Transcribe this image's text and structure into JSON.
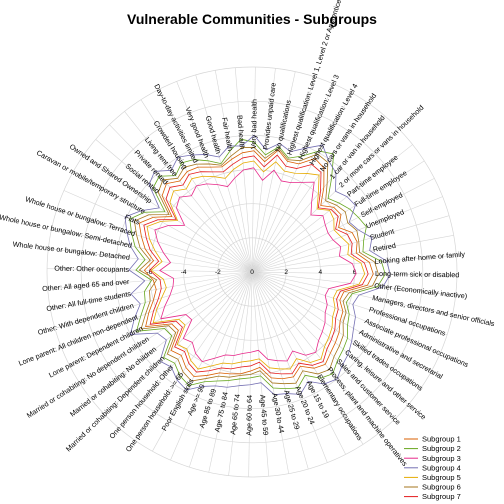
{
  "chart_data": {
    "type": "radar",
    "title": "Vulnerable Communities - Subgroups",
    "radial_range": [
      -6,
      6
    ],
    "radial_ticks": [
      -6,
      -4,
      -2,
      0,
      2,
      4,
      6
    ],
    "radial_tick_labels": [
      "-6",
      "-4",
      "-2",
      "0",
      "2",
      "4",
      "6"
    ],
    "spokes": [
      "Retired",
      "Student",
      "Unemployed",
      "Self-employed",
      "Full-time employee",
      "Part-time employee",
      "2 or more cars or vans in household",
      "1 car or van in household",
      "No cars or vans in household",
      "Highest qualification: Level 4",
      "Highest qualification: Level 3",
      "Highest qualification: Level 1, Level 2 or Apprenticeship",
      "No qualifications",
      "Provides unpaid care",
      "Very bad health",
      "Bad health",
      "Fair health",
      "Good health",
      "Very good health",
      "Day-to-day activities limited",
      "Crowded housing",
      "Living rent free",
      "Private rented",
      "Social rented",
      "Owned and Shared Ownership",
      "Caravan or mobile/temporary structure",
      "Flats",
      "Whole house or bungalow: Terraced",
      "Whole house or bungalow: Semi-detached",
      "Whole house or bungalow: Detached",
      "Other: Other occupants",
      "Other: All aged 65 and over",
      "Other: All full-time students",
      "Other: With dependent children",
      "Lone parent: All children non-dependent",
      "Lone parent: Dependent children",
      "Married or cohabiting: No dependent children",
      "Married or cohabiting: No children",
      "Married or cohabiting: Dependent children",
      "One person household: Other",
      "One person household: >= 65",
      "Poor English skills",
      "Age >= 90",
      "Age 85 to 89",
      "Age 75 to 84",
      "Age 65 to 74",
      "Age 60 to 64",
      "Age 45 to 59",
      "Age 30 to 44",
      "Age 25 to 29",
      "Age 20 to 24",
      "Age 15 to 19",
      "Elementary occupations",
      "Process, plant and machine operatives",
      "Sales and customer service",
      "Caring, leisure and other service",
      "Skilled trades occupations",
      "Administrative and secretarial",
      "Associate professional occupations",
      "Professional occupations",
      "Managers, directors and senior officials",
      "Other (Economically inactive)",
      "Long-term sick or disabled",
      "Looking after home or family"
    ],
    "series": [
      {
        "name": "Subgroup 1",
        "color": "#d95f02",
        "values": [
          0.2,
          0.4,
          0.3,
          -0.3,
          0.2,
          0.1,
          -0.4,
          0.5,
          1.4,
          1.6,
          0.9,
          0.8,
          1.3,
          0.5,
          1.1,
          1.0,
          0.7,
          0.4,
          0.6,
          0.9,
          1.0,
          0.8,
          1.2,
          0.9,
          -0.3,
          0.6,
          1.2,
          0.8,
          0.4,
          -0.2,
          0.3,
          -0.2,
          -0.3,
          0.0,
          0.5,
          1.0,
          -0.4,
          -0.5,
          0.6,
          0.4,
          0.8,
          1.0,
          0.6,
          0.2,
          0.1,
          0.0,
          -0.2,
          -0.4,
          0.3,
          0.5,
          0.6,
          0.2,
          0.7,
          0.9,
          0.6,
          0.4,
          0.2,
          -0.1,
          -0.2,
          -0.6,
          -0.5,
          0.8,
          1.1,
          0.9
        ]
      },
      {
        "name": "Subgroup 2",
        "color": "#66a61e",
        "values": [
          0.6,
          0.8,
          1.2,
          1.0,
          0.8,
          0.5,
          0.2,
          1.2,
          2.4,
          2.1,
          1.4,
          1.0,
          1.5,
          0.9,
          1.6,
          1.8,
          1.2,
          0.6,
          1.0,
          1.4,
          1.6,
          1.2,
          1.8,
          1.6,
          0.2,
          1.2,
          1.8,
          1.4,
          1.0,
          0.3,
          0.8,
          -0.1,
          0.4,
          0.5,
          1.0,
          1.6,
          0.1,
          0.0,
          1.2,
          1.0,
          1.4,
          1.6,
          1.0,
          0.7,
          0.5,
          0.3,
          0.2,
          0.1,
          0.9,
          1.1,
          1.3,
          0.8,
          1.4,
          1.6,
          1.2,
          1.0,
          0.8,
          0.4,
          0.2,
          -0.2,
          0.0,
          1.4,
          1.8,
          1.6
        ]
      },
      {
        "name": "Subgroup 3",
        "color": "#e7298a",
        "values": [
          -0.8,
          -0.6,
          -0.9,
          -1.0,
          -0.9,
          -0.7,
          -1.2,
          -0.6,
          0.4,
          0.0,
          -0.3,
          -0.4,
          0.1,
          -0.6,
          0.1,
          0.0,
          -0.4,
          -0.8,
          -0.5,
          -0.2,
          0.0,
          -0.3,
          0.1,
          -0.2,
          -1.2,
          -0.4,
          0.2,
          -0.2,
          -0.7,
          -1.2,
          -0.6,
          -1.4,
          -1.3,
          -1.0,
          -0.5,
          0.0,
          -1.4,
          -1.5,
          -0.4,
          -0.6,
          -0.2,
          0.0,
          -0.5,
          -0.9,
          -1.0,
          -1.2,
          -1.3,
          -1.4,
          -0.8,
          -0.6,
          -0.4,
          -0.8,
          -0.2,
          0.0,
          -0.4,
          -0.6,
          -0.8,
          -1.1,
          -1.2,
          -1.5,
          -1.4,
          -0.2,
          0.1,
          -0.1
        ]
      },
      {
        "name": "Subgroup 4",
        "color": "#7570b3",
        "values": [
          1.0,
          1.3,
          0.7,
          0.4,
          1.2,
          1.1,
          0.8,
          1.6,
          1.9,
          2.5,
          1.9,
          1.4,
          1.7,
          1.2,
          2.0,
          1.4,
          1.5,
          1.0,
          1.4,
          1.7,
          2.0,
          1.6,
          2.2,
          1.9,
          0.6,
          1.4,
          2.1,
          1.7,
          1.3,
          0.7,
          1.2,
          0.3,
          1.2,
          0.8,
          1.4,
          2.0,
          0.6,
          0.4,
          1.5,
          1.3,
          1.7,
          1.9,
          1.3,
          1.0,
          0.9,
          0.7,
          0.6,
          0.5,
          1.3,
          1.4,
          1.7,
          1.2,
          1.8,
          2.0,
          1.6,
          1.4,
          1.1,
          0.8,
          0.6,
          0.2,
          0.4,
          1.7,
          2.1,
          1.9
        ]
      },
      {
        "name": "Subgroup 5",
        "color": "#e6ab02",
        "values": [
          -0.3,
          -0.1,
          -0.4,
          -0.6,
          -0.3,
          -0.2,
          -0.7,
          0.0,
          0.9,
          0.6,
          0.3,
          0.2,
          0.6,
          -0.1,
          0.5,
          0.4,
          0.1,
          -0.3,
          0.0,
          0.3,
          0.5,
          0.2,
          0.6,
          0.3,
          -0.7,
          0.1,
          0.7,
          0.3,
          -0.2,
          -0.7,
          -0.1,
          -0.8,
          -0.9,
          -0.5,
          0.0,
          0.5,
          -0.9,
          -1.0,
          0.1,
          -0.1,
          0.3,
          0.5,
          0.0,
          -0.4,
          -0.5,
          -0.7,
          -0.8,
          -0.9,
          -0.3,
          -0.1,
          0.1,
          -0.3,
          0.3,
          0.5,
          0.1,
          -0.1,
          -0.3,
          -0.6,
          -0.7,
          -1.0,
          -0.9,
          0.3,
          0.6,
          0.4
        ]
      },
      {
        "name": "Subgroup 6",
        "color": "#a6761d",
        "values": [
          0.4,
          0.5,
          0.6,
          0.3,
          0.5,
          0.3,
          0.0,
          0.8,
          1.8,
          1.9,
          1.1,
          0.9,
          1.4,
          0.7,
          1.3,
          1.3,
          0.9,
          0.5,
          0.8,
          1.1,
          1.3,
          1.0,
          1.5,
          1.2,
          -0.1,
          0.9,
          1.5,
          1.1,
          0.7,
          0.0,
          0.6,
          -0.4,
          0.1,
          0.2,
          0.7,
          1.3,
          -0.2,
          -0.3,
          0.9,
          0.7,
          1.1,
          1.3,
          0.8,
          0.4,
          0.3,
          0.1,
          0.0,
          -0.2,
          0.6,
          0.8,
          1.0,
          0.5,
          1.1,
          1.3,
          0.9,
          0.7,
          0.5,
          0.1,
          0.0,
          -0.4,
          -0.2,
          1.1,
          1.4,
          1.2
        ]
      },
      {
        "name": "Subgroup 7",
        "color": "#e41a1c",
        "values": [
          -0.1,
          0.1,
          0.0,
          -0.5,
          0.0,
          -0.1,
          -0.6,
          0.2,
          1.1,
          1.2,
          0.6,
          0.5,
          1.0,
          0.2,
          0.8,
          0.7,
          0.4,
          0.1,
          0.3,
          0.6,
          0.8,
          0.5,
          0.9,
          0.6,
          -0.6,
          0.3,
          0.9,
          0.5,
          0.1,
          -0.5,
          0.0,
          -0.6,
          -0.6,
          -0.3,
          0.2,
          0.7,
          -0.7,
          -0.8,
          0.3,
          0.1,
          0.5,
          0.7,
          0.3,
          -0.1,
          -0.2,
          -0.4,
          -0.5,
          -0.7,
          0.0,
          0.2,
          0.4,
          0.0,
          0.5,
          0.7,
          0.3,
          0.1,
          -0.1,
          -0.4,
          -0.5,
          -0.8,
          -0.7,
          0.5,
          0.8,
          0.6
        ]
      }
    ],
    "legend": {
      "placement": "bottom-right"
    },
    "grid": true
  }
}
